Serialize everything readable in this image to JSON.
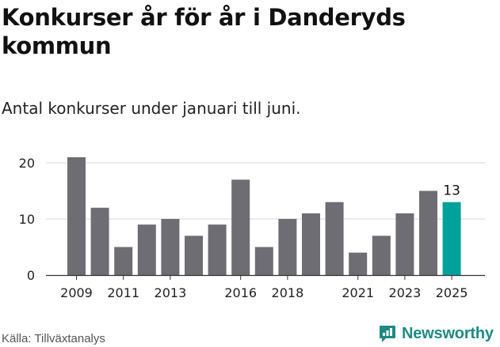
{
  "title": "Konkurser år för år i Danderyds kommun",
  "subtitle": "Antal konkurser under januari till juni.",
  "source": "Källa: Tillväxtanalys",
  "brand": {
    "name": "Newsworthy",
    "icon": "newsworthy-logo-icon",
    "color": "#1f8a84"
  },
  "chart_data": {
    "type": "bar",
    "categories": [
      "2009",
      "2010",
      "2011",
      "2012",
      "2013",
      "2014",
      "2015",
      "2016",
      "2017",
      "2018",
      "2019",
      "2020",
      "2021",
      "2022",
      "2023",
      "2024",
      "2025"
    ],
    "values": [
      21,
      12,
      5,
      9,
      10,
      7,
      9,
      17,
      5,
      10,
      11,
      13,
      4,
      7,
      11,
      15,
      13
    ],
    "x_tick_labels": [
      "2009",
      "2011",
      "2013",
      "2016",
      "2018",
      "2021",
      "2023",
      "2025"
    ],
    "y_ticks": [
      0,
      10,
      20
    ],
    "ylim": [
      0,
      20
    ],
    "highlight": {
      "category": "2025",
      "label": "13"
    },
    "colors": {
      "bar": "#6e6d74",
      "highlight": "#00a19a",
      "grid": "#d9d9d9",
      "axis": "#333333"
    },
    "grid": true,
    "xlabel": "",
    "ylabel": ""
  }
}
